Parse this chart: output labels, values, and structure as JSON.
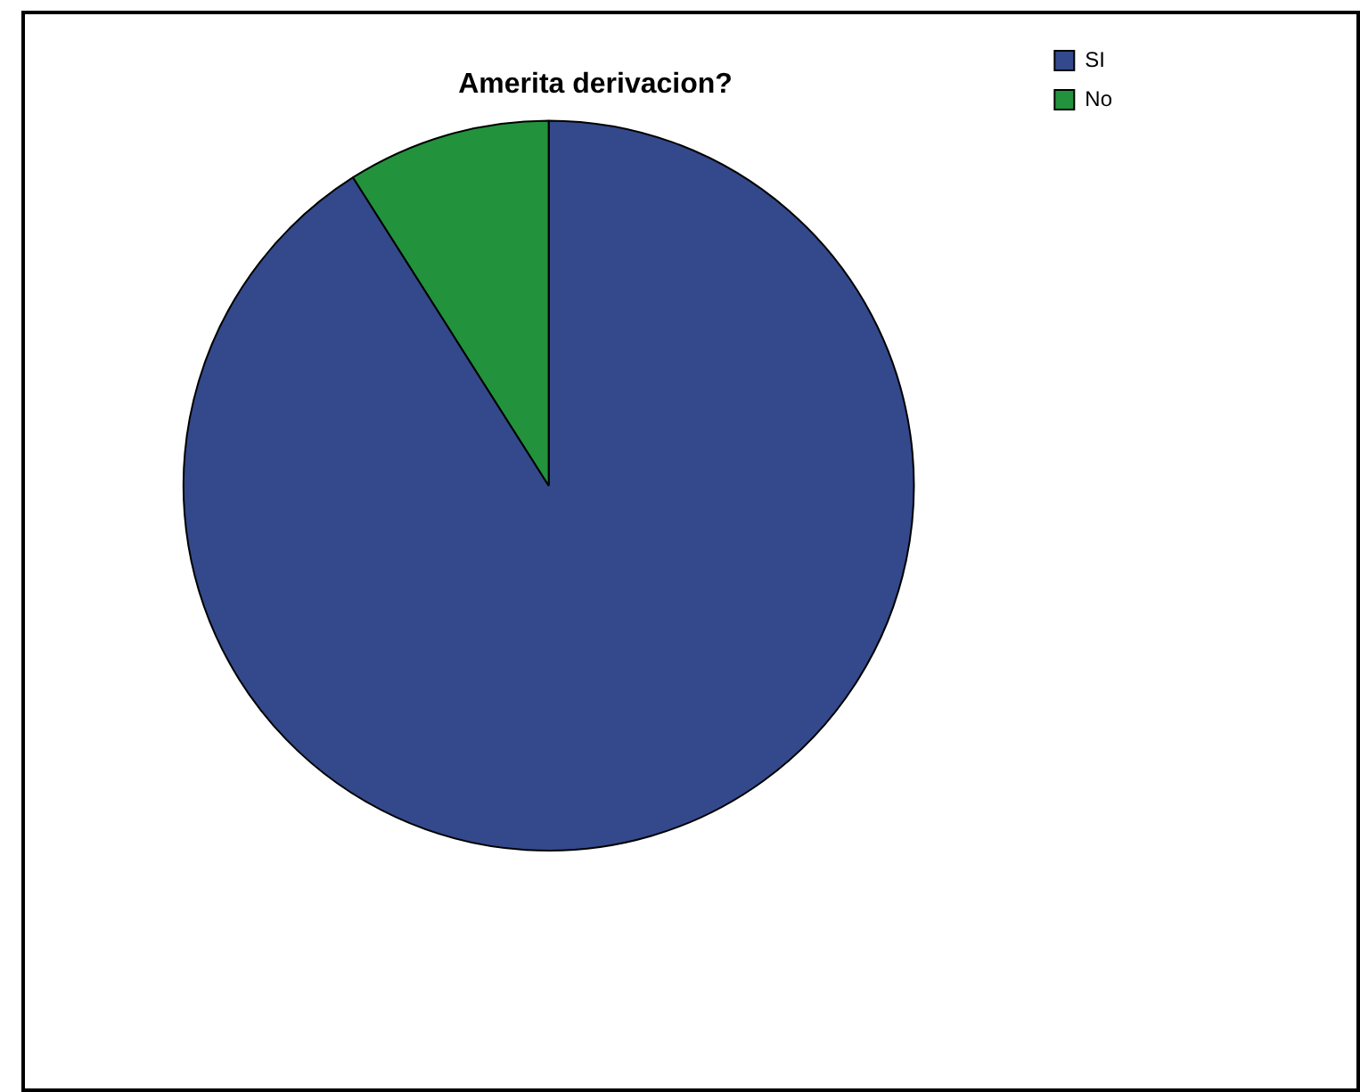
{
  "chart_data": {
    "type": "pie",
    "title": "Amerita derivacion?",
    "categories": [
      "SI",
      "No"
    ],
    "values": [
      91,
      9
    ],
    "colors": [
      "#33498b",
      "#22923c"
    ],
    "legend": "top right"
  }
}
